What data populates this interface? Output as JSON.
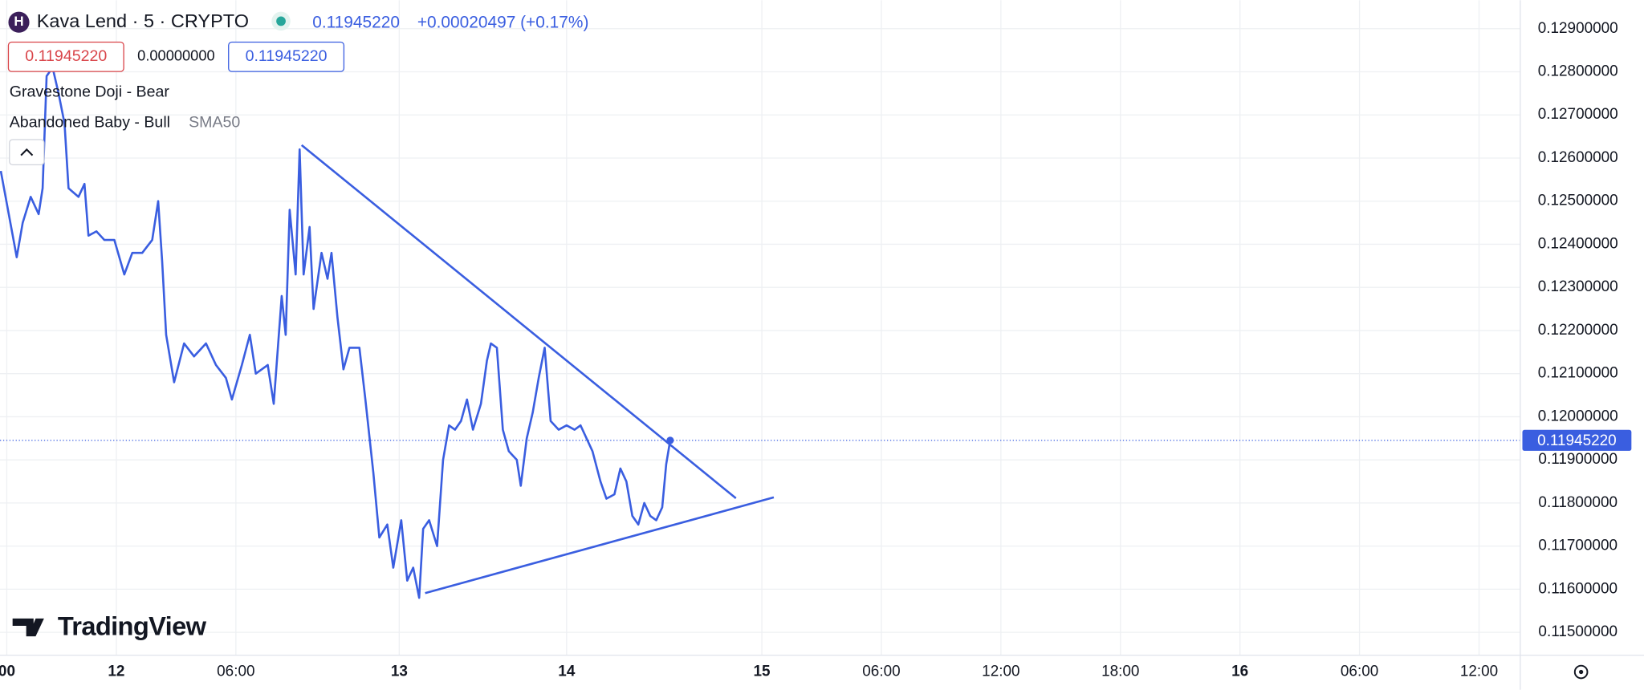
{
  "header": {
    "symbol": "Kava Lend · 5 · CRYPTO",
    "logo": "H",
    "change": "+0.00020497 (+0.17%)",
    "bid": "0.11945220",
    "spread": "0.00000000",
    "ask": "0.11945220"
  },
  "indicators": [
    "Gravestone Doji - Bear",
    "Abandoned Baby - Bull"
  ],
  "sma": "SMA50",
  "watermark": "TradingView",
  "chart_data": {
    "type": "line",
    "last_price": {
      "value": 0.1194522,
      "label": "0.11945220"
    },
    "xlim": [
      -5.84,
      70.47
    ],
    "xticks": [
      {
        "value": -5.5,
        "label": "00"
      },
      {
        "value": 0,
        "label": "12"
      },
      {
        "value": 6,
        "label": "06:00"
      },
      {
        "value": 14.2,
        "label": "13"
      },
      {
        "value": 22.6,
        "label": "14"
      },
      {
        "value": 32.4,
        "label": "15"
      },
      {
        "value": 38.4,
        "label": "06:00"
      },
      {
        "value": 44.4,
        "label": "12:00"
      },
      {
        "value": 50.4,
        "label": "18:00"
      },
      {
        "value": 56.4,
        "label": "16"
      },
      {
        "value": 62.4,
        "label": "06:00"
      },
      {
        "value": 68.4,
        "label": "12:00"
      }
    ],
    "ylim": [
      0.11447,
      0.12966
    ],
    "yticks": [
      {
        "value": 0.115,
        "label": "0.11500000"
      },
      {
        "value": 0.116,
        "label": "0.11600000"
      },
      {
        "value": 0.117,
        "label": "0.11700000"
      },
      {
        "value": 0.118,
        "label": "0.11800000"
      },
      {
        "value": 0.119,
        "label": "0.11900000"
      },
      {
        "value": 0.12,
        "label": "0.12000000"
      },
      {
        "value": 0.121,
        "label": "0.12100000"
      },
      {
        "value": 0.122,
        "label": "0.12200000"
      },
      {
        "value": 0.123,
        "label": "0.12300000"
      },
      {
        "value": 0.124,
        "label": "0.12400000"
      },
      {
        "value": 0.125,
        "label": "0.12500000"
      },
      {
        "value": 0.126,
        "label": "0.12600000"
      },
      {
        "value": 0.127,
        "label": "0.12700000"
      },
      {
        "value": 0.128,
        "label": "0.12800000"
      },
      {
        "value": 0.129,
        "label": "0.12900000"
      }
    ],
    "grid": true,
    "series": [
      {
        "color": "#3a5ee0",
        "x": [
          -5.8,
          -5.4,
          -5.0,
          -4.7,
          -4.3,
          -3.9,
          -3.7,
          -3.5,
          -3.2,
          -2.9,
          -2.6,
          -2.4,
          -1.9,
          -1.6,
          -1.4,
          -1.0,
          -0.6,
          -0.1,
          0.4,
          0.8,
          1.3,
          1.8,
          2.1,
          2.3,
          2.5,
          2.9,
          3.4,
          3.9,
          4.5,
          5.0,
          5.5,
          5.8,
          6.3,
          6.7,
          7.0,
          7.6,
          7.9,
          8.3,
          8.5,
          8.7,
          9.0,
          9.2,
          9.4,
          9.7,
          9.9,
          10.3,
          10.6,
          10.8,
          11.1,
          11.4,
          11.7,
          12.2,
          12.5,
          12.9,
          13.2,
          13.6,
          13.9,
          14.3,
          14.6,
          14.9,
          15.2,
          15.4,
          15.7,
          16.1,
          16.4,
          16.7,
          17.0,
          17.3,
          17.6,
          17.9,
          18.3,
          18.6,
          18.8,
          19.1,
          19.4,
          19.7,
          20.1,
          20.3,
          20.6,
          20.9,
          21.2,
          21.5,
          21.8,
          22.2,
          22.6,
          23.0,
          23.3,
          23.6,
          23.9,
          24.3,
          24.6,
          25.0,
          25.3,
          25.6,
          25.9,
          26.2,
          26.5,
          26.8,
          27.1,
          27.4,
          27.6,
          27.8
        ],
        "values": [
          0.1257,
          0.1247,
          0.1237,
          0.1245,
          0.1251,
          0.1247,
          0.1253,
          0.1279,
          0.1281,
          0.1275,
          0.1268,
          0.1253,
          0.1251,
          0.1254,
          0.1242,
          0.1243,
          0.1241,
          0.1241,
          0.1233,
          0.1238,
          0.1238,
          0.1241,
          0.125,
          0.1236,
          0.1219,
          0.1208,
          0.1217,
          0.1214,
          0.1217,
          0.1212,
          0.1209,
          0.1204,
          0.1212,
          0.1219,
          0.121,
          0.1212,
          0.1203,
          0.1228,
          0.1219,
          0.1248,
          0.1233,
          0.1262,
          0.1233,
          0.1244,
          0.1225,
          0.1238,
          0.1232,
          0.1238,
          0.1223,
          0.1211,
          0.1216,
          0.1216,
          0.1204,
          0.1187,
          0.1172,
          0.1175,
          0.1165,
          0.1176,
          0.1162,
          0.1165,
          0.1158,
          0.1174,
          0.1176,
          0.117,
          0.119,
          0.1198,
          0.1197,
          0.1199,
          0.1204,
          0.1197,
          0.1203,
          0.1213,
          0.1217,
          0.1216,
          0.1197,
          0.1192,
          0.119,
          0.1184,
          0.1195,
          0.1201,
          0.1209,
          0.1216,
          0.1199,
          0.1197,
          0.1198,
          0.1197,
          0.1198,
          0.1195,
          0.1192,
          0.1185,
          0.1181,
          0.1182,
          0.1188,
          0.1185,
          0.1177,
          0.1175,
          0.118,
          0.1177,
          0.1176,
          0.1179,
          0.1189,
          0.1194522
        ]
      }
    ],
    "trend_lines": [
      {
        "x": [
          9.3,
          31.1
        ],
        "values": [
          0.1263,
          0.11811
        ]
      },
      {
        "x": [
          15.5,
          33.0
        ],
        "values": [
          0.11591,
          0.11813
        ]
      }
    ]
  }
}
